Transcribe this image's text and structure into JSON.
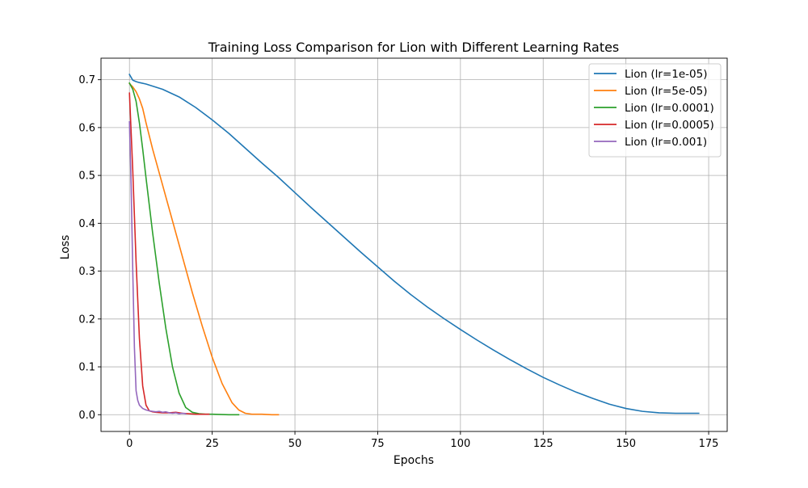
{
  "chart_data": {
    "type": "line",
    "title": "Training Loss Comparison for Lion with Different Learning Rates",
    "xlabel": "Epochs",
    "ylabel": "Loss",
    "xlim": [
      -8.6,
      180.6
    ],
    "ylim": [
      -0.035,
      0.745
    ],
    "xticks": [
      0,
      25,
      50,
      75,
      100,
      125,
      150,
      175
    ],
    "yticks": [
      0.0,
      0.1,
      0.2,
      0.3,
      0.4,
      0.5,
      0.6,
      0.7
    ],
    "xtick_labels": [
      "0",
      "25",
      "50",
      "75",
      "100",
      "125",
      "150",
      "175"
    ],
    "ytick_labels": [
      "0.0",
      "0.1",
      "0.2",
      "0.3",
      "0.4",
      "0.5",
      "0.6",
      "0.7"
    ],
    "grid": true,
    "legend_position": "top-right",
    "series": [
      {
        "name": "Lion (lr=1e-05)",
        "color": "#1f77b4",
        "x": [
          0,
          1,
          2,
          3,
          5,
          10,
          15,
          20,
          25,
          30,
          35,
          40,
          45,
          50,
          55,
          60,
          65,
          70,
          75,
          80,
          85,
          90,
          95,
          100,
          105,
          110,
          115,
          120,
          125,
          130,
          135,
          140,
          145,
          150,
          155,
          160,
          165,
          170,
          172
        ],
        "y": [
          0.711,
          0.699,
          0.696,
          0.694,
          0.691,
          0.68,
          0.664,
          0.642,
          0.616,
          0.588,
          0.557,
          0.526,
          0.496,
          0.464,
          0.432,
          0.401,
          0.37,
          0.339,
          0.309,
          0.279,
          0.251,
          0.225,
          0.201,
          0.178,
          0.156,
          0.135,
          0.115,
          0.096,
          0.078,
          0.062,
          0.047,
          0.034,
          0.022,
          0.013,
          0.007,
          0.004,
          0.003,
          0.003,
          0.003
        ]
      },
      {
        "name": "Lion (lr=5e-05)",
        "color": "#ff7f0e",
        "x": [
          0,
          1,
          2,
          3,
          4,
          5,
          7,
          10,
          13,
          16,
          19,
          22,
          25,
          28,
          31,
          33,
          35,
          37,
          40,
          43,
          45
        ],
        "y": [
          0.692,
          0.685,
          0.675,
          0.66,
          0.64,
          0.61,
          0.555,
          0.48,
          0.405,
          0.33,
          0.255,
          0.185,
          0.12,
          0.065,
          0.025,
          0.01,
          0.003,
          0.001,
          0.001,
          0.0,
          0.0
        ]
      },
      {
        "name": "Lion (lr=0.0001)",
        "color": "#2ca02c",
        "x": [
          0,
          1,
          2,
          3,
          4,
          5,
          7,
          9,
          11,
          13,
          15,
          17,
          19,
          21,
          23,
          25,
          30,
          33
        ],
        "y": [
          0.693,
          0.68,
          0.655,
          0.61,
          0.555,
          0.495,
          0.38,
          0.275,
          0.18,
          0.1,
          0.045,
          0.015,
          0.005,
          0.002,
          0.001,
          0.001,
          0.0,
          0.0
        ]
      },
      {
        "name": "Lion (lr=0.0005)",
        "color": "#d62728",
        "x": [
          0,
          1,
          2,
          3,
          4,
          5,
          6,
          7,
          8,
          10,
          12,
          14,
          16,
          18,
          20,
          22,
          24
        ],
        "y": [
          0.672,
          0.51,
          0.32,
          0.16,
          0.06,
          0.02,
          0.008,
          0.006,
          0.005,
          0.004,
          0.004,
          0.005,
          0.003,
          0.002,
          0.001,
          0.001,
          0.001
        ]
      },
      {
        "name": "Lion (lr=0.001)",
        "color": "#9467bd",
        "x": [
          0,
          0.5,
          1,
          1.5,
          2,
          2.5,
          3,
          4,
          5,
          6,
          7,
          8,
          9,
          10,
          11,
          12,
          13,
          14,
          15,
          16,
          17
        ],
        "y": [
          0.612,
          0.48,
          0.3,
          0.14,
          0.05,
          0.03,
          0.02,
          0.013,
          0.01,
          0.008,
          0.007,
          0.006,
          0.007,
          0.005,
          0.006,
          0.004,
          0.003,
          0.004,
          0.002,
          0.003,
          0.002
        ]
      }
    ]
  }
}
